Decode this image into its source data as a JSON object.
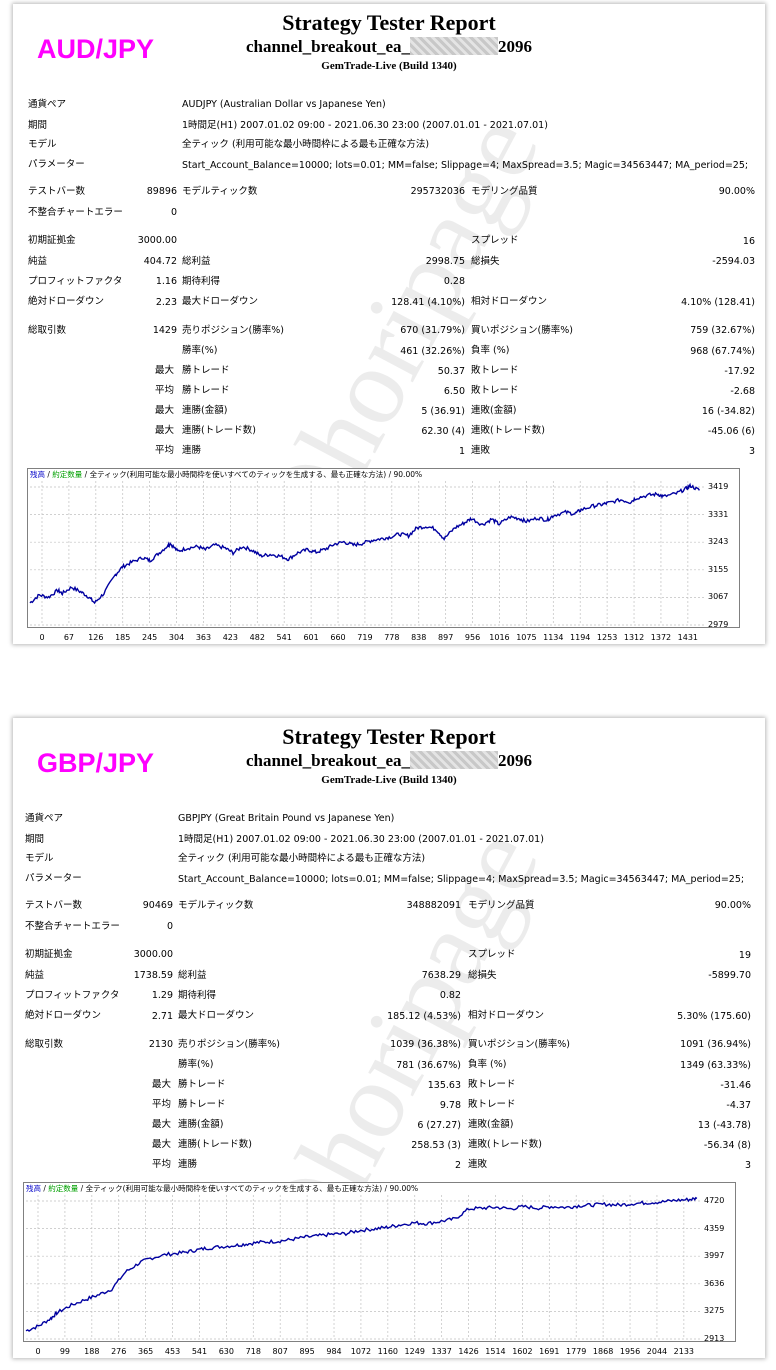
{
  "reports": [
    {
      "pair_label": "AUD/JPY",
      "title": "Strategy Tester Report",
      "ea_prefix": "channel_breakout_ea_",
      "ea_suffix": "2096",
      "build": "GemTrade-Live (Build 1340)",
      "info": {
        "symbol_label": "通貨ペア",
        "symbol_value": "AUDJPY (Australian Dollar vs Japanese Yen)",
        "period_label": "期間",
        "period_value": "1時間足(H1) 2007.01.02 09:00 - 2021.06.30 23:00 (2007.01.01 - 2021.07.01)",
        "model_label": "モデル",
        "model_value": "全ティック (利用可能な最小時間枠による最も正確な方法)",
        "params_label": "パラメーター",
        "params_value": "Start_Account_Balance=10000; lots=0.01; MM=false; Slippage=4; MaxSpread=3.5; Magic=34563447; MA_period=25;"
      },
      "stats": {
        "bars_label": "テストバー数",
        "bars": "89896",
        "ticks_label": "モデルティック数",
        "ticks": "295732036",
        "quality_label": "モデリング品質",
        "quality": "90.00%",
        "mismatch_label": "不整合チャートエラー",
        "mismatch": "0",
        "deposit_label": "初期証拠金",
        "deposit": "3000.00",
        "spread_label": "スプレッド",
        "spread": "16",
        "net_label": "純益",
        "net": "404.72",
        "gross_profit_label": "総利益",
        "gross_profit": "2998.75",
        "gross_loss_label": "総損失",
        "gross_loss": "-2594.03",
        "pf_label": "プロフィットファクタ",
        "pf": "1.16",
        "payoff_label": "期待利得",
        "payoff": "0.28",
        "abs_dd_label": "絶対ドローダウン",
        "abs_dd": "2.23",
        "max_dd_label": "最大ドローダウン",
        "max_dd": "128.41 (4.10%)",
        "rel_dd_label": "相対ドローダウン",
        "rel_dd": "4.10% (128.41)",
        "trades_label": "総取引数",
        "trades": "1429",
        "short_label": "売りポジション(勝率%)",
        "short": "670 (31.79%)",
        "long_label": "買いポジション(勝率%)",
        "long": "759 (32.67%)",
        "winrate_label": "勝率(%)",
        "winrate": "461 (32.26%)",
        "lossrate_label": "負率 (%)",
        "lossrate": "968 (67.74%)",
        "max_label": "最大",
        "avg_label": "平均",
        "win_trade_label": "勝トレード",
        "loss_trade_label": "敗トレード",
        "largest_win": "50.37",
        "largest_loss": "-17.92",
        "avg_win": "6.50",
        "avg_loss": "-2.68",
        "consec_wins_money_label": "連勝(金額)",
        "consec_wins_money": "5 (36.91)",
        "consec_losses_money_label": "連敗(金額)",
        "consec_losses_money": "16 (-34.82)",
        "consec_wins_count_label": "連勝(トレード数)",
        "consec_wins_count": "62.30 (4)",
        "consec_losses_count_label": "連敗(トレード数)",
        "consec_losses_count": "-45.06 (6)",
        "avg_wins_label": "連勝",
        "avg_wins": "1",
        "avg_losses_label": "連敗",
        "avg_losses": "3"
      },
      "legend": {
        "balance": "残高",
        "slash": " / ",
        "lot": "約定数量",
        "rest": " / 全ティック(利用可能な最小時間枠を使いすべてのティックを生成する、最も正確な方法) / 90.00%"
      },
      "watermark": "(C)horipage",
      "chart_data": {
        "type": "line",
        "x_ticks": [
          "0",
          "67",
          "126",
          "185",
          "245",
          "304",
          "363",
          "423",
          "482",
          "541",
          "601",
          "660",
          "719",
          "778",
          "838",
          "897",
          "956",
          "1016",
          "1075",
          "1134",
          "1194",
          "1253",
          "1312",
          "1372",
          "1431"
        ],
        "y_ticks": [
          "3419",
          "3331",
          "3243",
          "3155",
          "3067",
          "2979"
        ],
        "ylim": [
          2979,
          3440
        ],
        "xlim": [
          0,
          1460
        ],
        "color": "#0000a0",
        "x": [
          0,
          20,
          40,
          60,
          70,
          90,
          110,
          126,
          140,
          160,
          185,
          200,
          220,
          245,
          260,
          280,
          300,
          304,
          320,
          340,
          363,
          380,
          400,
          423,
          440,
          460,
          482,
          500,
          520,
          541,
          560,
          580,
          601,
          620,
          640,
          660,
          680,
          700,
          719,
          740,
          760,
          778,
          800,
          820,
          838,
          860,
          880,
          897,
          920,
          940,
          956,
          980,
          1000,
          1016,
          1040,
          1060,
          1075,
          1100,
          1120,
          1134,
          1160,
          1180,
          1194,
          1220,
          1240,
          1253,
          1280,
          1300,
          1312,
          1340,
          1360,
          1372,
          1400,
          1420,
          1431,
          1450
        ],
        "y": [
          3050,
          3075,
          3068,
          3090,
          3080,
          3100,
          3085,
          3070,
          3050,
          3080,
          3140,
          3165,
          3180,
          3195,
          3185,
          3210,
          3235,
          3240,
          3215,
          3225,
          3230,
          3220,
          3235,
          3225,
          3210,
          3230,
          3218,
          3200,
          3205,
          3200,
          3190,
          3210,
          3220,
          3212,
          3222,
          3238,
          3245,
          3235,
          3240,
          3250,
          3255,
          3260,
          3270,
          3265,
          3290,
          3295,
          3285,
          3255,
          3290,
          3305,
          3320,
          3300,
          3318,
          3302,
          3325,
          3320,
          3310,
          3322,
          3315,
          3330,
          3340,
          3335,
          3348,
          3360,
          3365,
          3370,
          3380,
          3372,
          3385,
          3395,
          3398,
          3390,
          3400,
          3415,
          3425,
          3410
        ]
      }
    },
    {
      "pair_label": "GBP/JPY",
      "title": "Strategy Tester Report",
      "ea_prefix": "channel_breakout_ea_",
      "ea_suffix": "2096",
      "build": "GemTrade-Live (Build 1340)",
      "info": {
        "symbol_label": "通貨ペア",
        "symbol_value": "GBPJPY (Great Britain Pound vs Japanese Yen)",
        "period_label": "期間",
        "period_value": "1時間足(H1) 2007.01.02 09:00 - 2021.06.30 23:00 (2007.01.01 - 2021.07.01)",
        "model_label": "モデル",
        "model_value": "全ティック (利用可能な最小時間枠による最も正確な方法)",
        "params_label": "パラメーター",
        "params_value": "Start_Account_Balance=10000; lots=0.01; MM=false; Slippage=4; MaxSpread=3.5; Magic=34563447; MA_period=25;"
      },
      "stats": {
        "bars_label": "テストバー数",
        "bars": "90469",
        "ticks_label": "モデルティック数",
        "ticks": "348882091",
        "quality_label": "モデリング品質",
        "quality": "90.00%",
        "mismatch_label": "不整合チャートエラー",
        "mismatch": "0",
        "deposit_label": "初期証拠金",
        "deposit": "3000.00",
        "spread_label": "スプレッド",
        "spread": "19",
        "net_label": "純益",
        "net": "1738.59",
        "gross_profit_label": "総利益",
        "gross_profit": "7638.29",
        "gross_loss_label": "総損失",
        "gross_loss": "-5899.70",
        "pf_label": "プロフィットファクタ",
        "pf": "1.29",
        "payoff_label": "期待利得",
        "payoff": "0.82",
        "abs_dd_label": "絶対ドローダウン",
        "abs_dd": "2.71",
        "max_dd_label": "最大ドローダウン",
        "max_dd": "185.12 (4.53%)",
        "rel_dd_label": "相対ドローダウン",
        "rel_dd": "5.30% (175.60)",
        "trades_label": "総取引数",
        "trades": "2130",
        "short_label": "売りポジション(勝率%)",
        "short": "1039 (36.38%)",
        "long_label": "買いポジション(勝率%)",
        "long": "1091 (36.94%)",
        "winrate_label": "勝率(%)",
        "winrate": "781 (36.67%)",
        "lossrate_label": "負率 (%)",
        "lossrate": "1349 (63.33%)",
        "max_label": "最大",
        "avg_label": "平均",
        "win_trade_label": "勝トレード",
        "loss_trade_label": "敗トレード",
        "largest_win": "135.63",
        "largest_loss": "-31.46",
        "avg_win": "9.78",
        "avg_loss": "-4.37",
        "consec_wins_money_label": "連勝(金額)",
        "consec_wins_money": "6 (27.27)",
        "consec_losses_money_label": "連敗(金額)",
        "consec_losses_money": "13 (-43.78)",
        "consec_wins_count_label": "連勝(トレード数)",
        "consec_wins_count": "258.53 (3)",
        "consec_losses_count_label": "連敗(トレード数)",
        "consec_losses_count": "-56.34 (8)",
        "avg_wins_label": "連勝",
        "avg_wins": "2",
        "avg_losses_label": "連敗",
        "avg_losses": "3"
      },
      "legend": {
        "balance": "残高",
        "slash": " / ",
        "lot": "約定数量",
        "rest": " / 全ティック(利用可能な最小時間枠を使いすべてのティックを生成する、最も正確な方法) / 90.00%"
      },
      "watermark": "(C)horipage",
      "chart_data": {
        "type": "line",
        "x_ticks": [
          "0",
          "99",
          "188",
          "276",
          "365",
          "453",
          "541",
          "630",
          "718",
          "807",
          "895",
          "984",
          "1072",
          "1160",
          "1249",
          "1337",
          "1426",
          "1514",
          "1602",
          "1691",
          "1779",
          "1868",
          "1956",
          "2044",
          "2133"
        ],
        "y_ticks": [
          "4720",
          "4359",
          "3997",
          "3636",
          "3275",
          "2913"
        ],
        "ylim": [
          2913,
          4780
        ],
        "xlim": [
          0,
          2170
        ],
        "color": "#0000a0",
        "x": [
          0,
          40,
          80,
          99,
          140,
          188,
          230,
          276,
          320,
          365,
          400,
          453,
          500,
          541,
          580,
          630,
          680,
          718,
          760,
          807,
          850,
          895,
          940,
          984,
          1030,
          1072,
          1120,
          1160,
          1200,
          1249,
          1290,
          1337,
          1380,
          1426,
          1470,
          1514,
          1560,
          1602,
          1650,
          1691,
          1740,
          1779,
          1820,
          1868,
          1910,
          1956,
          2000,
          2044,
          2090,
          2133,
          2160
        ],
        "y": [
          3020,
          3080,
          3180,
          3250,
          3340,
          3420,
          3480,
          3560,
          3780,
          3900,
          3960,
          4010,
          4030,
          4060,
          4090,
          4110,
          4130,
          4150,
          4170,
          4180,
          4200,
          4230,
          4250,
          4270,
          4280,
          4320,
          4340,
          4360,
          4390,
          4420,
          4410,
          4440,
          4470,
          4600,
          4610,
          4620,
          4600,
          4630,
          4610,
          4630,
          4620,
          4640,
          4650,
          4660,
          4650,
          4670,
          4680,
          4690,
          4710,
          4720,
          4735
        ]
      }
    }
  ]
}
